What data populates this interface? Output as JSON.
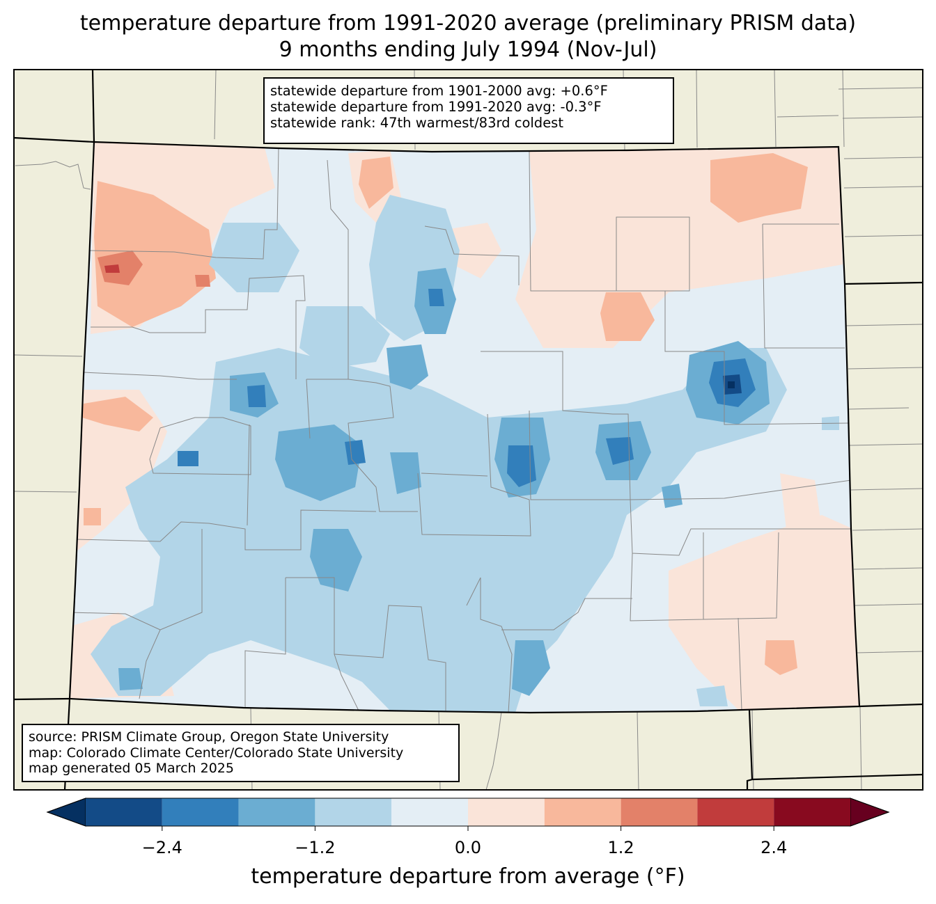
{
  "title": {
    "line1": "temperature departure from 1991-2020 average (preliminary PRISM data)",
    "line2": "9 months ending July 1994 (Nov-Jul)"
  },
  "stats_box": {
    "line1": "statewide departure from 1901-2000 avg: +0.6°F",
    "line2": "statewide departure from 1991-2020 avg: -0.3°F",
    "line3": "statewide rank: 47th warmest/83rd coldest"
  },
  "source_box": {
    "line1": "source: PRISM Climate Group, Oregon State University",
    "line2": "map: Colorado Climate Center/Colorado State University",
    "line3": "map generated 05 March 2025"
  },
  "colorbar": {
    "label": "temperature departure from average (°F)",
    "ticks": [
      {
        "value": -2.4,
        "label": "−2.4"
      },
      {
        "value": -1.2,
        "label": "−1.2"
      },
      {
        "value": 0.0,
        "label": "0.0"
      },
      {
        "value": 1.2,
        "label": "1.2"
      },
      {
        "value": 2.4,
        "label": "2.4"
      }
    ],
    "range": [
      -3.0,
      3.0
    ],
    "levels": [
      -3.0,
      -2.4,
      -1.8,
      -1.2,
      -0.6,
      0.0,
      0.6,
      1.2,
      1.8,
      2.4,
      3.0
    ],
    "colors": [
      "#134b87",
      "#327fbb",
      "#6badd2",
      "#b2d5e8",
      "#e4eef5",
      "#fae4d9",
      "#f8b89c",
      "#e38169",
      "#c13c3c",
      "#880a1f"
    ],
    "under_color": "#053061",
    "over_color": "#67001f"
  },
  "map_colors": {
    "background": "#efeedc",
    "state_fill": "#e4eef5"
  }
}
